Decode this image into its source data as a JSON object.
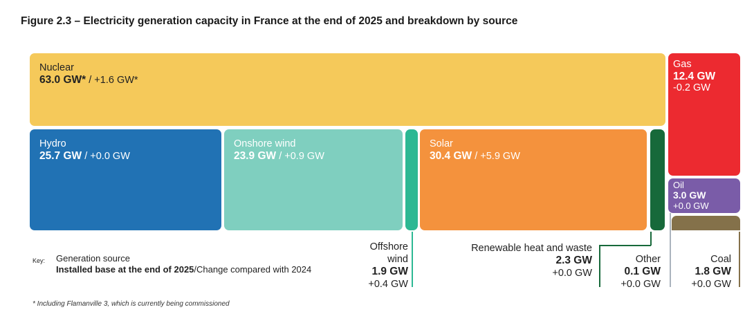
{
  "title": "Figure 2.3 – Electricity generation capacity in France at the end of 2025 and breakdown by source",
  "chart_data": {
    "type": "treemap",
    "unit": "GW",
    "items": [
      {
        "name": "Nuclear",
        "value": "63.0 GW*",
        "change": "+1.6 GW*",
        "color": "#f5c95a"
      },
      {
        "name": "Hydro",
        "value": "25.7 GW",
        "change": "+0.0 GW",
        "color": "#2172b4"
      },
      {
        "name": "Onshore wind",
        "value": "23.9 GW",
        "change": "+0.9 GW",
        "color": "#7fcfbf"
      },
      {
        "name": "Offshore wind",
        "value": "1.9 GW",
        "change": "+0.4 GW",
        "color": "#2cb893"
      },
      {
        "name": "Solar",
        "value": "30.4 GW",
        "change": "+5.9 GW",
        "color": "#f4923d"
      },
      {
        "name": "Renewable heat and waste",
        "value": "2.3 GW",
        "change": "+0.0 GW",
        "color": "#17693a"
      },
      {
        "name": "Gas",
        "value": "12.4 GW",
        "change": "-0.2 GW",
        "color": "#ec2a30"
      },
      {
        "name": "Oil",
        "value": "3.0 GW",
        "change": "+0.0 GW",
        "color": "#7a5ca8"
      },
      {
        "name": "Coal",
        "value": "1.8 GW",
        "change": "+0.0 GW",
        "color": "#84714a"
      },
      {
        "name": "Other",
        "value": "0.1 GW",
        "change": "+0.0 GW",
        "color": "#aab3bd"
      }
    ]
  },
  "key": {
    "label": "Key:",
    "line1": "Generation source",
    "bold": "Installed base at the end of 2025",
    "rest": "/Change compared with 2024"
  },
  "offshore_label": {
    "l1": "Offshore",
    "l2": "wind"
  },
  "sep": " / ",
  "footnote": "* Including Flamanville 3, which is currently being commissioned"
}
